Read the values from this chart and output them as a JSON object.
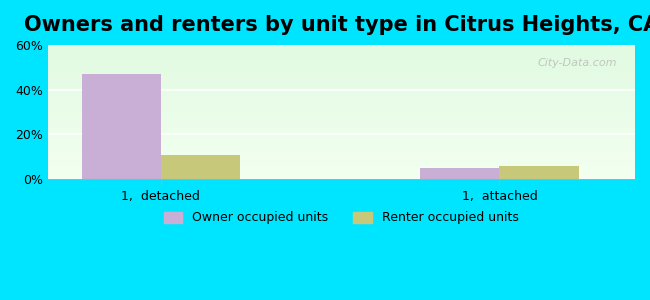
{
  "title": "Owners and renters by unit type in Citrus Heights, CA",
  "categories": [
    "1,  detached",
    "1,  attached"
  ],
  "owner_values": [
    47,
    5
  ],
  "renter_values": [
    11,
    6
  ],
  "owner_color": "#c9aed6",
  "renter_color": "#c8c87a",
  "ylim": [
    0,
    60
  ],
  "yticks": [
    0,
    20,
    40,
    60
  ],
  "ytick_labels": [
    "0%",
    "20%",
    "40%",
    "60%"
  ],
  "bar_width": 0.35,
  "background_top": "#e0f5e0",
  "background_bottom": "#f5fff5",
  "outer_background": "#00e5ff",
  "legend_labels": [
    "Owner occupied units",
    "Renter occupied units"
  ],
  "watermark": "City-Data.com",
  "title_fontsize": 15,
  "label_fontsize": 9
}
